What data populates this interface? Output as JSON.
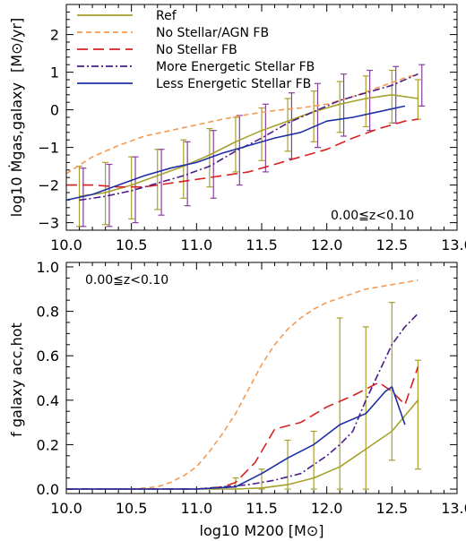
{
  "chart_data": [
    {
      "type": "line",
      "xlabel": "",
      "ylabel_main": "log10 Ṁgas,galaxy",
      "ylabel_unit": "[M⊙/yr]",
      "xlim": [
        10.0,
        13.0
      ],
      "ylim": [
        -3.2,
        2.8
      ],
      "xticks": [
        10.0,
        10.5,
        11.0,
        11.5,
        12.0,
        12.5,
        13.0
      ],
      "xtick_labels": [
        "10.0",
        "10.5",
        "11.0",
        "11.5",
        "12.0",
        "12.5",
        "13.0"
      ],
      "yticks": [
        -3,
        -2,
        -1,
        0,
        1,
        2
      ],
      "ytick_labels": [
        "−3",
        "−2",
        "−1",
        "0",
        "1",
        "2"
      ],
      "annotation": "0.00≦z<0.10",
      "legend_position": "top-left",
      "series": [
        {
          "name": "Ref",
          "color": "#a6a12b",
          "dash": "",
          "width": 1.6,
          "x": [
            10.1,
            10.3,
            10.5,
            10.7,
            10.9,
            11.1,
            11.3,
            11.5,
            11.7,
            11.9,
            12.1,
            12.3,
            12.5,
            12.7
          ],
          "y": [
            -2.3,
            -2.2,
            -2.0,
            -1.75,
            -1.5,
            -1.2,
            -0.85,
            -0.55,
            -0.3,
            -0.05,
            0.15,
            0.3,
            0.4,
            0.3
          ]
        },
        {
          "name": "No Stellar/AGN FB",
          "color": "#f59a52",
          "dash": "6,4",
          "width": 1.6,
          "x": [
            10.0,
            10.2,
            10.4,
            10.6,
            10.8,
            11.0,
            11.2,
            11.4,
            11.6,
            11.8,
            12.0,
            12.2,
            12.4,
            12.6,
            12.7
          ],
          "y": [
            -1.7,
            -1.25,
            -0.95,
            -0.7,
            -0.55,
            -0.4,
            -0.25,
            -0.12,
            -0.02,
            0.05,
            0.15,
            0.35,
            0.6,
            0.85,
            0.95
          ]
        },
        {
          "name": "No Stellar FB",
          "color": "#d92020",
          "dash": "12,6",
          "width": 1.6,
          "x": [
            10.0,
            10.2,
            10.4,
            10.6,
            10.8,
            11.0,
            11.2,
            11.4,
            11.6,
            11.8,
            12.0,
            12.2,
            12.4,
            12.6,
            12.7
          ],
          "y": [
            -2.0,
            -2.0,
            -2.05,
            -2.05,
            -1.95,
            -1.85,
            -1.75,
            -1.65,
            -1.45,
            -1.25,
            -1.05,
            -0.75,
            -0.5,
            -0.3,
            -0.25
          ]
        },
        {
          "name": "More Energetic Stellar FB",
          "color": "#4b1c8c",
          "dash": "8,3,2,3",
          "width": 1.6,
          "x": [
            10.1,
            10.3,
            10.5,
            10.7,
            10.9,
            11.1,
            11.3,
            11.5,
            11.7,
            11.9,
            12.1,
            12.3,
            12.5,
            12.7
          ],
          "y": [
            -2.4,
            -2.3,
            -2.15,
            -1.95,
            -1.75,
            -1.5,
            -1.1,
            -0.75,
            -0.35,
            -0.05,
            0.25,
            0.45,
            0.65,
            0.95
          ]
        },
        {
          "name": "Less Energetic Stellar FB",
          "color": "#1d2fa3",
          "dash": "",
          "width": 1.6,
          "x": [
            10.0,
            10.2,
            10.4,
            10.6,
            10.8,
            11.0,
            11.2,
            11.4,
            11.6,
            11.8,
            12.0,
            12.2,
            12.4,
            12.6
          ],
          "y": [
            -2.4,
            -2.25,
            -2.0,
            -1.75,
            -1.55,
            -1.4,
            -1.15,
            -0.95,
            -0.75,
            -0.6,
            -0.3,
            -0.2,
            -0.05,
            0.1
          ]
        }
      ],
      "errorbars": [
        {
          "color": "#a6a12b",
          "offset": 0.0,
          "x": [
            10.1,
            10.3,
            10.5,
            10.7,
            10.9,
            11.1,
            11.3,
            11.5,
            11.7,
            11.9,
            12.1,
            12.3,
            12.5,
            12.7
          ],
          "low": [
            -3.1,
            -3.05,
            -2.9,
            -2.65,
            -2.35,
            -2.05,
            -1.65,
            -1.35,
            -1.1,
            -0.85,
            -0.6,
            -0.45,
            -0.35,
            -0.25
          ],
          "high": [
            -1.5,
            -1.4,
            -1.25,
            -1.05,
            -0.8,
            -0.5,
            -0.2,
            0.05,
            0.3,
            0.5,
            0.75,
            0.9,
            1.05,
            0.8
          ]
        },
        {
          "color": "#8a3d9e",
          "offset": 0.03,
          "x": [
            10.1,
            10.3,
            10.5,
            10.7,
            10.9,
            11.1,
            11.3,
            11.5,
            11.7,
            11.9,
            12.1,
            12.3,
            12.5,
            12.7
          ],
          "low": [
            -3.1,
            -3.1,
            -3.0,
            -2.8,
            -2.55,
            -2.35,
            -2.0,
            -1.65,
            -1.3,
            -1.0,
            -0.7,
            -0.55,
            -0.35,
            0.1
          ],
          "high": [
            -1.55,
            -1.45,
            -1.25,
            -1.05,
            -0.85,
            -0.55,
            -0.15,
            0.15,
            0.45,
            0.7,
            0.95,
            1.05,
            1.15,
            1.2
          ]
        }
      ]
    },
    {
      "type": "line",
      "xlabel": "log10 M200 [M⊙]",
      "ylabel": "f galaxy acc,hot",
      "xlim": [
        10.0,
        13.0
      ],
      "ylim": [
        -0.02,
        1.02
      ],
      "xticks": [
        10.0,
        10.5,
        11.0,
        11.5,
        12.0,
        12.5,
        13.0
      ],
      "xtick_labels": [
        "10.0",
        "10.5",
        "11.0",
        "11.5",
        "12.0",
        "12.5",
        "13.0"
      ],
      "yticks": [
        0.0,
        0.2,
        0.4,
        0.6,
        0.8,
        1.0
      ],
      "ytick_labels": [
        "0.0",
        "0.2",
        "0.4",
        "0.6",
        "0.8",
        "1.0"
      ],
      "annotation": "0.00≦z<0.10",
      "series": [
        {
          "name": "Ref",
          "color": "#a6a12b",
          "dash": "",
          "width": 1.6,
          "x": [
            10.0,
            10.5,
            11.0,
            11.3,
            11.5,
            11.7,
            11.9,
            12.1,
            12.3,
            12.5,
            12.7
          ],
          "y": [
            0.0,
            0.0,
            0.0,
            0.0,
            0.005,
            0.02,
            0.05,
            0.1,
            0.18,
            0.26,
            0.4
          ]
        },
        {
          "name": "No Stellar/AGN FB",
          "color": "#f59a52",
          "dash": "6,4",
          "width": 1.6,
          "x": [
            10.5,
            10.7,
            10.8,
            10.9,
            11.0,
            11.1,
            11.2,
            11.3,
            11.4,
            11.5,
            11.6,
            11.7,
            11.8,
            11.9,
            12.0,
            12.1,
            12.2,
            12.3,
            12.5,
            12.7
          ],
          "y": [
            0.0,
            0.01,
            0.03,
            0.06,
            0.1,
            0.17,
            0.25,
            0.34,
            0.45,
            0.56,
            0.65,
            0.72,
            0.77,
            0.81,
            0.84,
            0.86,
            0.88,
            0.9,
            0.92,
            0.94
          ]
        },
        {
          "name": "No Stellar FB",
          "color": "#d92020",
          "dash": "12,6",
          "width": 1.6,
          "x": [
            10.0,
            11.0,
            11.2,
            11.3,
            11.45,
            11.6,
            11.8,
            12.0,
            12.2,
            12.4,
            12.5,
            12.6,
            12.7
          ],
          "y": [
            0.0,
            0.0,
            0.01,
            0.03,
            0.12,
            0.27,
            0.3,
            0.37,
            0.42,
            0.48,
            0.44,
            0.38,
            0.55
          ]
        },
        {
          "name": "More Energetic Stellar FB",
          "color": "#4b1c8c",
          "dash": "8,3,2,3",
          "width": 1.6,
          "x": [
            10.0,
            11.0,
            11.2,
            11.4,
            11.6,
            11.8,
            11.9,
            12.0,
            12.1,
            12.2,
            12.3,
            12.5,
            12.6,
            12.7
          ],
          "y": [
            0.0,
            0.0,
            0.01,
            0.02,
            0.04,
            0.07,
            0.11,
            0.15,
            0.2,
            0.26,
            0.4,
            0.65,
            0.73,
            0.79
          ]
        },
        {
          "name": "Less Energetic Stellar FB",
          "color": "#1d2fa3",
          "dash": "",
          "width": 1.6,
          "x": [
            10.0,
            11.0,
            11.3,
            11.5,
            11.7,
            11.9,
            12.1,
            12.3,
            12.45,
            12.5,
            12.6
          ],
          "y": [
            0.0,
            0.0,
            0.01,
            0.07,
            0.14,
            0.2,
            0.29,
            0.34,
            0.44,
            0.46,
            0.29
          ]
        }
      ],
      "errorbars": [
        {
          "color": "#a6a12b",
          "offset": 0.0,
          "x": [
            11.3,
            11.5,
            11.7,
            11.9,
            12.1,
            12.3,
            12.5,
            12.7
          ],
          "low": [
            0.0,
            0.0,
            0.0,
            0.0,
            0.0,
            0.0,
            0.13,
            0.09
          ],
          "high": [
            0.05,
            0.09,
            0.22,
            0.26,
            0.77,
            0.73,
            0.84,
            0.58
          ]
        }
      ]
    }
  ],
  "legend": {
    "items": [
      {
        "label": "Ref",
        "color": "#a6a12b",
        "dash": ""
      },
      {
        "label": "No Stellar/AGN FB",
        "color": "#f59a52",
        "dash": "6,4"
      },
      {
        "label": "No Stellar FB",
        "color": "#d92020",
        "dash": "12,6"
      },
      {
        "label": "More Energetic Stellar FB",
        "color": "#4b1c8c",
        "dash": "8,3,2,3"
      },
      {
        "label": "Less Energetic Stellar FB",
        "color": "#1d2fa3",
        "dash": ""
      }
    ]
  }
}
